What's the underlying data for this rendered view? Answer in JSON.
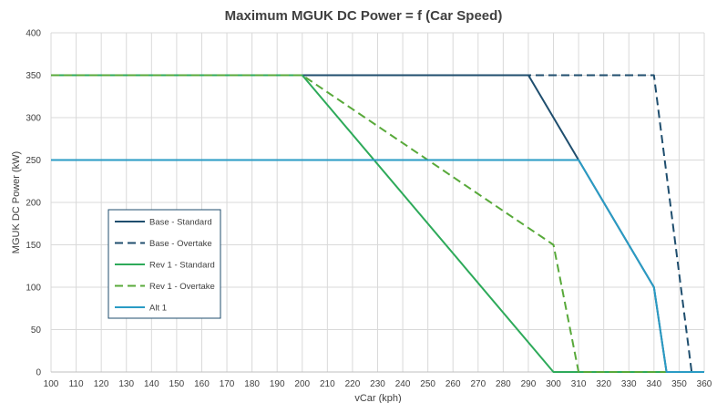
{
  "chart_data": {
    "type": "line",
    "title": "Maximum MGUK DC Power = f (Car Speed)",
    "xlabel": "vCar (kph)",
    "ylabel": "MGUK DC Power (kW)",
    "xlim": [
      100,
      360
    ],
    "ylim": [
      0,
      400
    ],
    "xticks": [
      100,
      110,
      120,
      130,
      140,
      150,
      160,
      170,
      180,
      190,
      200,
      210,
      220,
      230,
      240,
      250,
      260,
      270,
      280,
      290,
      300,
      310,
      320,
      330,
      340,
      350,
      360
    ],
    "yticks": [
      0,
      50,
      100,
      150,
      200,
      250,
      300,
      350,
      400
    ],
    "grid": true,
    "legend_position": "left-center",
    "series": [
      {
        "name": "Base - Standard",
        "color": "#1f4e6e",
        "dash": "solid",
        "points": [
          [
            100,
            350
          ],
          [
            290,
            350
          ],
          [
            310,
            250
          ],
          [
            340,
            100
          ],
          [
            345,
            0
          ],
          [
            360,
            0
          ]
        ]
      },
      {
        "name": "Base - Overtake",
        "color": "#1f4e6e",
        "dash": "dashed",
        "points": [
          [
            100,
            350
          ],
          [
            340,
            350
          ],
          [
            355,
            0
          ],
          [
            360,
            0
          ]
        ]
      },
      {
        "name": "Rev 1 - Standard",
        "color": "#2eaa5a",
        "dash": "solid",
        "points": [
          [
            100,
            350
          ],
          [
            200,
            350
          ],
          [
            300,
            0
          ],
          [
            360,
            0
          ]
        ]
      },
      {
        "name": "Rev 1 - Overtake",
        "color": "#58a93a",
        "dash": "dashed",
        "points": [
          [
            100,
            350
          ],
          [
            200,
            350
          ],
          [
            300,
            150
          ],
          [
            310,
            0
          ],
          [
            360,
            0
          ]
        ]
      },
      {
        "name": "Alt 1",
        "color": "#2a9bc4",
        "dash": "solid",
        "points": [
          [
            100,
            250
          ],
          [
            310,
            250
          ],
          [
            340,
            100
          ],
          [
            345,
            0
          ],
          [
            360,
            0
          ]
        ]
      }
    ]
  }
}
